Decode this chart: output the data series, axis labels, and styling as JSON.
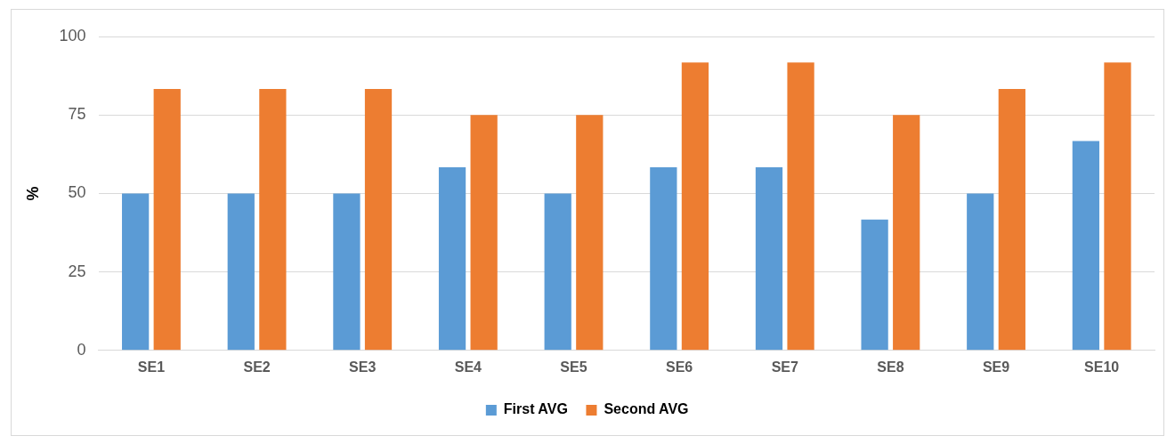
{
  "chart_data": {
    "type": "bar",
    "ylabel": "%",
    "categories": [
      "SE1",
      "SE2",
      "SE3",
      "SE4",
      "SE5",
      "SE6",
      "SE7",
      "SE8",
      "SE9",
      "SE10"
    ],
    "series": [
      {
        "name": "First AVG",
        "color": "#5b9bd5",
        "values": [
          50,
          50,
          50,
          58.3,
          50,
          58.3,
          58.3,
          41.7,
          50,
          66.7
        ]
      },
      {
        "name": "Second AVG",
        "color": "#ed7d31",
        "values": [
          83.3,
          83.3,
          83.3,
          75,
          75,
          91.7,
          91.7,
          75,
          83.3,
          91.7
        ]
      }
    ],
    "ylim": [
      0,
      100
    ],
    "yticks": [
      0,
      25,
      50,
      75,
      100
    ],
    "grid": "y",
    "legend": "bottom"
  }
}
